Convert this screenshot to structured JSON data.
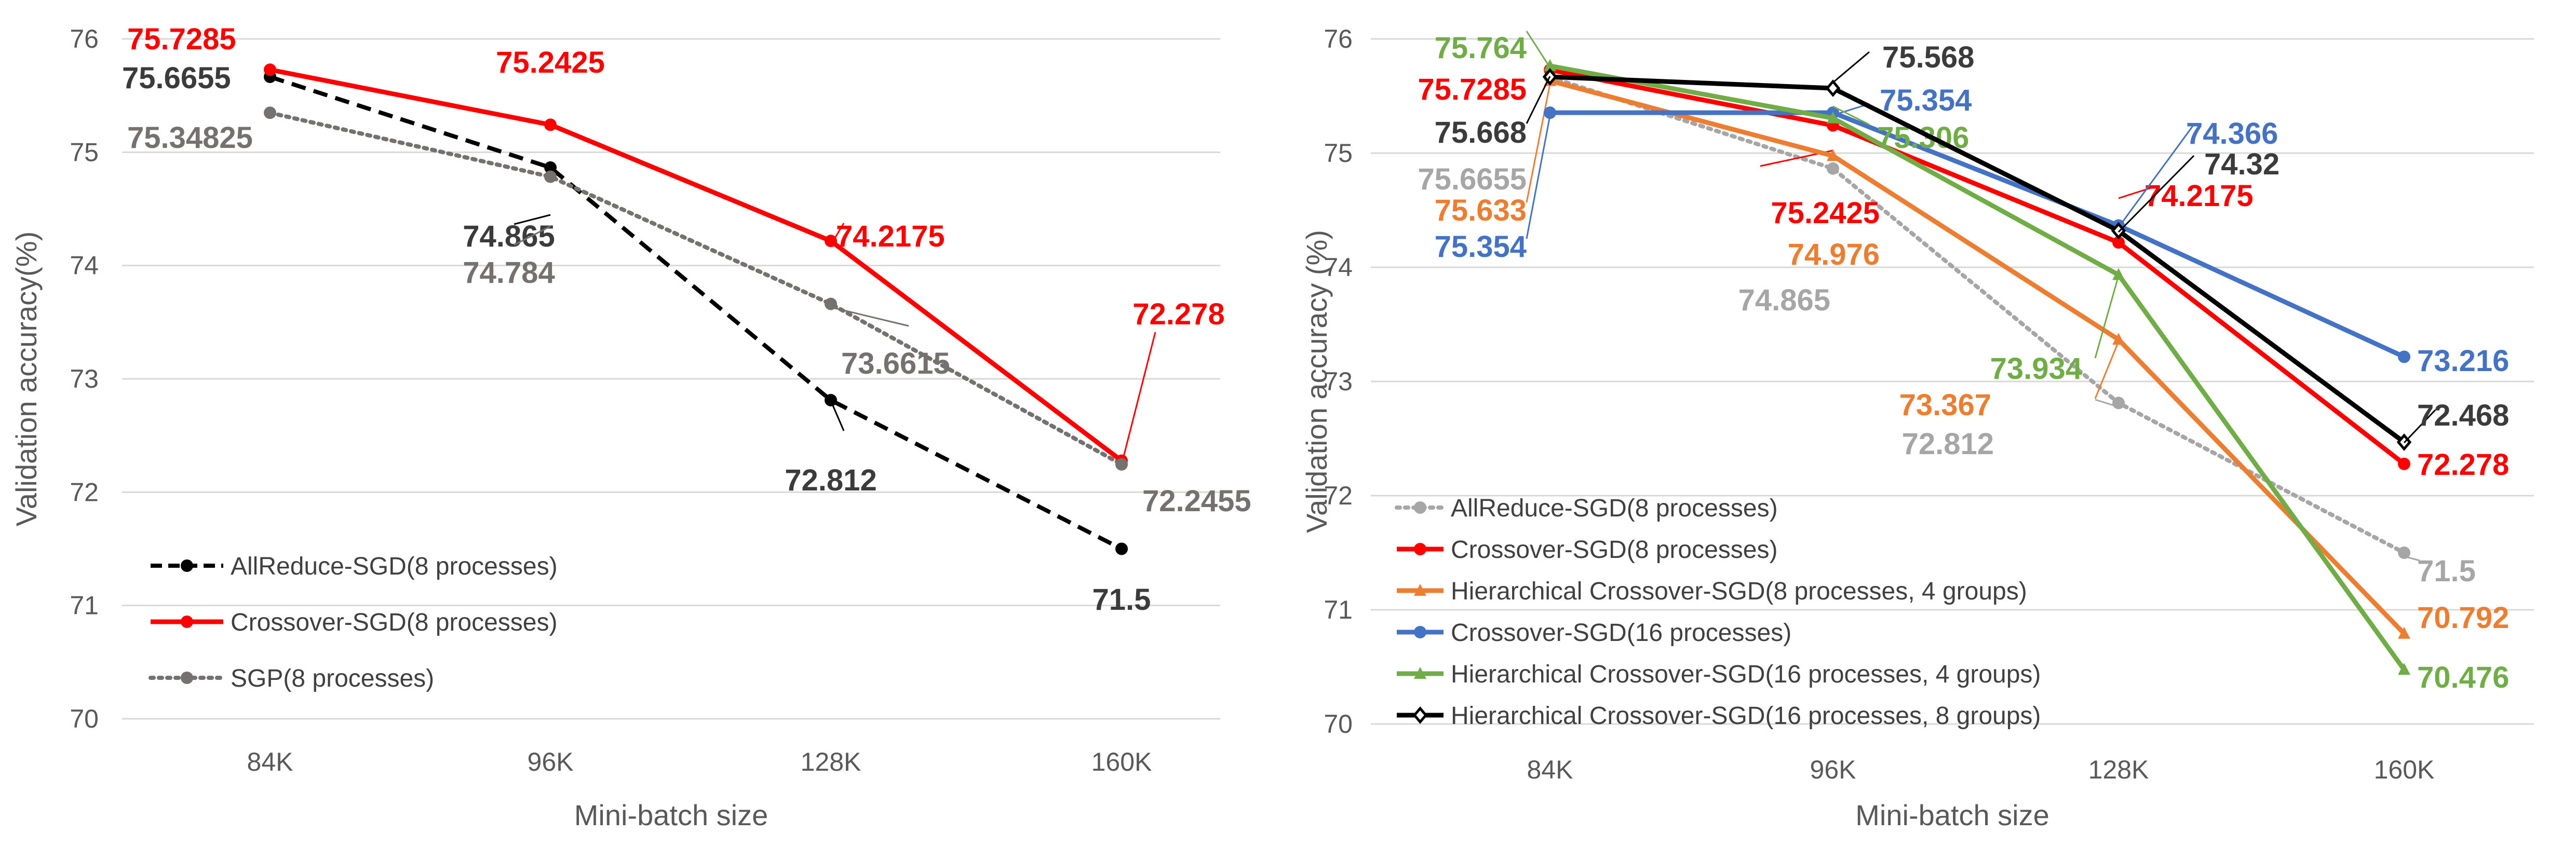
{
  "chart_data": [
    {
      "type": "line",
      "categories": [
        "84K",
        "96K",
        "128K",
        "160K"
      ],
      "xlabel": "Mini-batch size",
      "ylabel": "Validation accuracy(%)",
      "ylim": [
        70,
        76
      ],
      "yticks": [
        "70",
        "71",
        "72",
        "73",
        "74",
        "75",
        "76"
      ],
      "grid": "horizontal",
      "legend_position": "bottom-left",
      "series": [
        {
          "name": "AllReduce-SGD(8 processes)",
          "values": [
            75.6655,
            74.865,
            72.812,
            71.5
          ],
          "labels": [
            "75.6655",
            "74.865",
            "72.812",
            "71.5"
          ],
          "color": "#000000",
          "style": "dashed",
          "marker": "circle"
        },
        {
          "name": "Crossover-SGD(8 processes)",
          "values": [
            75.7285,
            75.2425,
            74.2175,
            72.278
          ],
          "labels": [
            "75.7285",
            "75.2425",
            "74.2175",
            "72.278"
          ],
          "color": "#ff0000",
          "style": "solid",
          "marker": "circle"
        },
        {
          "name": "SGP(8 processes)",
          "values": [
            75.34825,
            74.784,
            73.6615,
            72.2455
          ],
          "labels": [
            "75.34825",
            "74.784",
            "73.6615",
            "72.2455"
          ],
          "color": "#767171",
          "style": "dotted",
          "marker": "circle"
        }
      ]
    },
    {
      "type": "line",
      "categories": [
        "84K",
        "96K",
        "128K",
        "160K"
      ],
      "xlabel": "Mini-batch size",
      "ylabel": "Validation accuracy (%)",
      "ylim": [
        70,
        76
      ],
      "yticks": [
        "70",
        "71",
        "72",
        "73",
        "74",
        "75",
        "76"
      ],
      "grid": "horizontal",
      "legend_position": "bottom-left",
      "series": [
        {
          "name": "AllReduce-SGD(8 processes)",
          "values": [
            75.6655,
            74.865,
            72.812,
            71.5
          ],
          "labels": [
            "75.6655",
            "74.865",
            "72.812",
            "71.5"
          ],
          "color": "#a6a6a6",
          "style": "dotted",
          "marker": "circle"
        },
        {
          "name": "Crossover-SGD(8 processes)",
          "values": [
            75.7285,
            75.2425,
            74.2175,
            72.278
          ],
          "labels": [
            "75.7285",
            "75.2425",
            "74.2175",
            "72.278"
          ],
          "color": "#ff0000",
          "style": "solid",
          "marker": "circle"
        },
        {
          "name": "Hierarchical Crossover-SGD(8 processes, 4 groups)",
          "values": [
            75.633,
            74.976,
            73.367,
            70.792
          ],
          "labels": [
            "75.633",
            "74.976",
            "73.367",
            "70.792"
          ],
          "color": "#ed7d31",
          "style": "solid",
          "marker": "triangle"
        },
        {
          "name": "Crossover-SGD(16 processes)",
          "values": [
            75.354,
            75.354,
            74.366,
            73.216
          ],
          "labels": [
            "75.354",
            "75.354",
            "74.366",
            "73.216"
          ],
          "color": "#4472c4",
          "style": "solid",
          "marker": "circle"
        },
        {
          "name": "Hierarchical Crossover-SGD(16 processes, 4 groups)",
          "values": [
            75.764,
            75.306,
            73.934,
            70.476
          ],
          "labels": [
            "75.764",
            "75.306",
            "73.934",
            "70.476"
          ],
          "color": "#70ad47",
          "style": "solid",
          "marker": "triangle"
        },
        {
          "name": "Hierarchical Crossover-SGD(16 processes, 8 groups)",
          "values": [
            75.668,
            75.568,
            74.32,
            72.468
          ],
          "labels": [
            "75.668",
            "75.568",
            "74.32",
            "72.468"
          ],
          "color": "#000000",
          "style": "solid",
          "marker": "diamond"
        }
      ]
    }
  ]
}
